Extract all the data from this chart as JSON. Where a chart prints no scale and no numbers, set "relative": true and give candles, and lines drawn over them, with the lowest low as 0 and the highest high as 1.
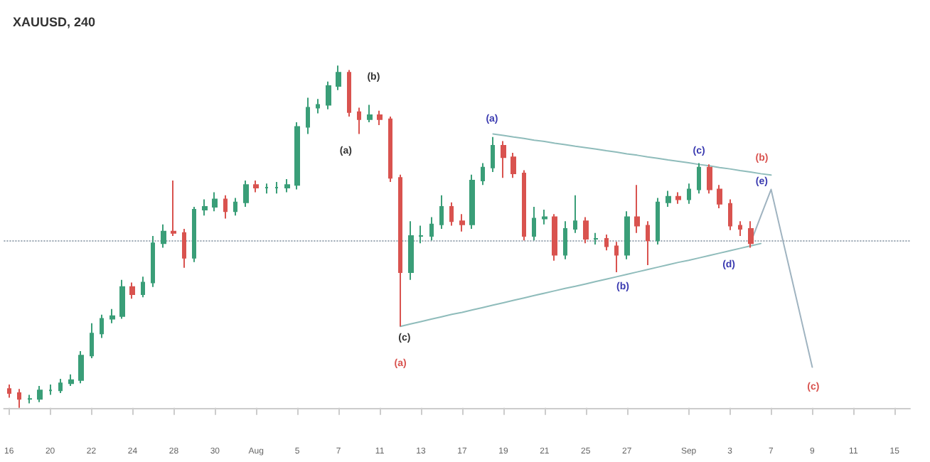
{
  "chart_data": {
    "type": "candlestick",
    "title": "XAUUSD, 240",
    "relative": true,
    "categories": [
      "16",
      null,
      null,
      null,
      "20",
      null,
      null,
      null,
      "22",
      null,
      null,
      null,
      "24",
      null,
      null,
      null,
      "28",
      null,
      null,
      null,
      "30",
      null,
      null,
      null,
      "Aug",
      null,
      null,
      null,
      "5",
      null,
      null,
      null,
      "7",
      null,
      null,
      null,
      "11",
      null,
      null,
      null,
      "13",
      null,
      null,
      null,
      "17",
      null,
      null,
      null,
      "19",
      null,
      null,
      null,
      "21",
      null,
      null,
      null,
      "25",
      null,
      null,
      null,
      "27",
      null,
      null,
      null,
      null,
      null,
      "Sep",
      null,
      null,
      null,
      "3",
      null,
      null,
      null,
      "7",
      null,
      null,
      null,
      "9",
      null,
      null,
      null,
      "11",
      null,
      null,
      null,
      "15",
      null
    ],
    "ohlc": [
      [
        0.055,
        0.068,
        0.03,
        0.043
      ],
      [
        0.043,
        0.055,
        0,
        0.026
      ],
      [
        0.026,
        0.038,
        0.013,
        0.026
      ],
      [
        0.026,
        0.064,
        0.017,
        0.051
      ],
      [
        0.051,
        0.068,
        0.038,
        0.051
      ],
      [
        0.051,
        0.085,
        0.043,
        0.072
      ],
      [
        0.072,
        0.098,
        0.064,
        0.081
      ],
      [
        0.081,
        0.166,
        0.072,
        0.153
      ],
      [
        0.153,
        0.247,
        0.145,
        0.217
      ],
      [
        0.217,
        0.272,
        0.204,
        0.26
      ],
      [
        0.26,
        0.289,
        0.247,
        0.268
      ],
      [
        0.268,
        0.374,
        0.26,
        0.353
      ],
      [
        0.353,
        0.366,
        0.319,
        0.332
      ],
      [
        0.332,
        0.383,
        0.323,
        0.366
      ],
      [
        0.366,
        0.502,
        0.353,
        0.481
      ],
      [
        0.481,
        0.536,
        0.468,
        0.515
      ],
      [
        0.515,
        0.664,
        0.502,
        0.511
      ],
      [
        0.511,
        0.523,
        0.409,
        0.438
      ],
      [
        0.438,
        0.587,
        0.426,
        0.579
      ],
      [
        0.579,
        0.609,
        0.562,
        0.587
      ],
      [
        0.587,
        0.63,
        0.574,
        0.609
      ],
      [
        0.609,
        0.621,
        0.553,
        0.574
      ],
      [
        0.574,
        0.613,
        0.562,
        0.6
      ],
      [
        0.6,
        0.664,
        0.587,
        0.651
      ],
      [
        0.651,
        0.664,
        0.63,
        0.643
      ],
      [
        0.643,
        0.655,
        0.626,
        0.643
      ],
      [
        0.643,
        0.66,
        0.626,
        0.643
      ],
      [
        0.643,
        0.668,
        0.63,
        0.651
      ],
      [
        0.651,
        0.834,
        0.638,
        0.821
      ],
      [
        0.821,
        0.906,
        0.8,
        0.877
      ],
      [
        0.877,
        0.902,
        0.86,
        0.885
      ],
      [
        0.885,
        0.953,
        0.872,
        0.94
      ],
      [
        0.94,
        1,
        0.928,
        0.979
      ],
      [
        0.979,
        0.987,
        0.851,
        0.864
      ],
      [
        0.864,
        0.877,
        0.8,
        0.843
      ],
      [
        0.843,
        0.885,
        0.834,
        0.855
      ],
      [
        0.855,
        0.868,
        0.826,
        0.843
      ],
      [
        0.843,
        0.851,
        0.66,
        0.672
      ],
      [
        0.672,
        0.681,
        0.238,
        0.396
      ],
      [
        0.396,
        0.545,
        0.374,
        0.502
      ],
      [
        0.502,
        0.532,
        0.481,
        0.502
      ],
      [
        0.502,
        0.557,
        0.489,
        0.536
      ],
      [
        0.536,
        0.621,
        0.523,
        0.587
      ],
      [
        0.587,
        0.6,
        0.532,
        0.545
      ],
      [
        0.545,
        0.566,
        0.515,
        0.536
      ],
      [
        0.536,
        0.681,
        0.523,
        0.664
      ],
      [
        0.664,
        0.715,
        0.651,
        0.702
      ],
      [
        0.702,
        0.791,
        0.689,
        0.766
      ],
      [
        0.766,
        0.779,
        0.672,
        0.732
      ],
      [
        0.732,
        0.745,
        0.672,
        0.685
      ],
      [
        0.685,
        0.694,
        0.489,
        0.502
      ],
      [
        0.502,
        0.587,
        0.489,
        0.553
      ],
      [
        0.553,
        0.579,
        0.536,
        0.557
      ],
      [
        0.557,
        0.566,
        0.43,
        0.447
      ],
      [
        0.447,
        0.545,
        0.434,
        0.523
      ],
      [
        0.523,
        0.621,
        0.511,
        0.545
      ],
      [
        0.545,
        0.557,
        0.481,
        0.494
      ],
      [
        0.494,
        0.511,
        0.477,
        0.494
      ],
      [
        0.494,
        0.506,
        0.46,
        0.472
      ],
      [
        0.472,
        0.485,
        0.396,
        0.447
      ],
      [
        0.447,
        0.574,
        0.434,
        0.557
      ],
      [
        0.557,
        0.651,
        0.511,
        0.532
      ],
      [
        0.532,
        0.545,
        0.417,
        0.489
      ],
      [
        0.489,
        0.613,
        0.477,
        0.6
      ],
      [
        0.6,
        0.634,
        0.587,
        0.617
      ],
      [
        0.617,
        0.63,
        0.596,
        0.609
      ],
      [
        0.609,
        0.655,
        0.596,
        0.638
      ],
      [
        0.638,
        0.715,
        0.626,
        0.702
      ],
      [
        0.702,
        0.711,
        0.626,
        0.638
      ],
      [
        0.638,
        0.651,
        0.583,
        0.596
      ],
      [
        0.596,
        0.609,
        0.519,
        0.532
      ],
      [
        0.532,
        0.545,
        0.502,
        0.523
      ],
      [
        0.523,
        0.545,
        0.468,
        0.481
      ],
      null,
      null,
      null,
      null,
      null,
      null,
      null,
      null,
      null,
      null,
      null,
      null,
      null,
      null,
      null
    ],
    "series": [
      {
        "type": "line",
        "color": "#8fbcbb",
        "values": [
          null,
          null,
          null,
          null,
          null,
          null,
          null,
          null,
          null,
          null,
          null,
          null,
          null,
          null,
          null,
          null,
          null,
          null,
          null,
          null,
          null,
          null,
          null,
          null,
          null,
          null,
          null,
          null,
          null,
          null,
          null,
          null,
          null,
          null,
          null,
          null,
          null,
          null,
          null,
          null,
          null,
          null,
          null,
          null,
          null,
          null,
          null,
          0.8,
          0.796,
          0.791,
          0.787,
          0.782,
          0.778,
          0.773,
          0.769,
          0.764,
          0.76,
          0.756,
          0.751,
          0.747,
          0.742,
          0.738,
          0.733,
          0.729,
          0.724,
          0.72,
          0.716,
          0.711,
          0.707,
          0.702,
          0.698,
          0.693,
          0.689,
          0.684,
          0.68,
          null,
          null,
          null,
          null,
          null,
          null,
          null,
          null,
          null,
          null,
          null,
          null,
          null
        ]
      },
      {
        "type": "line",
        "color": "#8fbcbb",
        "values": [
          null,
          null,
          null,
          null,
          null,
          null,
          null,
          null,
          null,
          null,
          null,
          null,
          null,
          null,
          null,
          null,
          null,
          null,
          null,
          null,
          null,
          null,
          null,
          null,
          null,
          null,
          null,
          null,
          null,
          null,
          null,
          null,
          null,
          null,
          null,
          null,
          null,
          null,
          0.238,
          0.245,
          0.252,
          0.259,
          0.266,
          0.273,
          0.279,
          0.286,
          0.293,
          0.3,
          0.307,
          0.314,
          0.321,
          0.328,
          0.335,
          0.342,
          0.349,
          0.355,
          0.362,
          0.369,
          0.376,
          0.383,
          0.39,
          0.397,
          0.404,
          0.411,
          0.418,
          0.425,
          0.431,
          0.438,
          0.445,
          0.452,
          0.459,
          0.466,
          0.473,
          0.48,
          null,
          null,
          null,
          null,
          null,
          null,
          null,
          null,
          null,
          null,
          null,
          null,
          null,
          null
        ]
      },
      {
        "type": "line",
        "color": "#9fb3c0",
        "values": [
          null,
          null,
          null,
          null,
          null,
          null,
          null,
          null,
          null,
          null,
          null,
          null,
          null,
          null,
          null,
          null,
          null,
          null,
          null,
          null,
          null,
          null,
          null,
          null,
          null,
          null,
          null,
          null,
          null,
          null,
          null,
          null,
          null,
          null,
          null,
          null,
          null,
          null,
          null,
          null,
          null,
          null,
          null,
          null,
          null,
          null,
          null,
          null,
          null,
          null,
          null,
          null,
          null,
          null,
          null,
          null,
          null,
          null,
          null,
          null,
          null,
          null,
          null,
          null,
          null,
          null,
          null,
          null,
          null,
          null,
          null,
          null,
          0.481,
          0.56,
          0.638,
          0.508,
          0.379,
          0.249,
          0.119,
          null,
          null,
          null,
          null,
          null,
          null,
          null,
          null,
          null
        ]
      }
    ],
    "ref_lines": [
      {
        "axis": "y",
        "value": 0.489,
        "color": "#9aa6b2",
        "line_style": "dotted"
      }
    ],
    "annotations": [
      "(b)",
      "(a)",
      "(c)",
      "(a)",
      "(a)",
      "(b)",
      "(c)",
      "(d)",
      "(e)",
      "(b)",
      "(c)"
    ],
    "grid": false,
    "marker": "none"
  }
}
